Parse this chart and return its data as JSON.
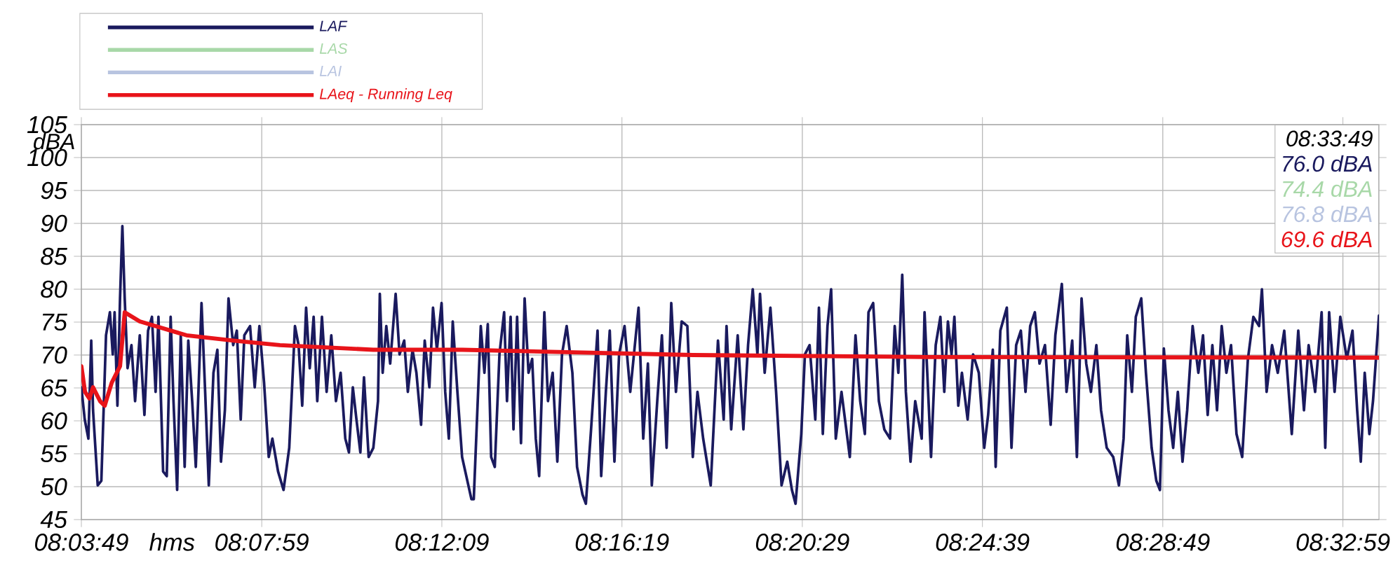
{
  "chart_data": {
    "type": "line",
    "xlabel": "hms",
    "ylabel": "dBA",
    "xlim": [
      8.0636,
      8.5636
    ],
    "ylim": [
      45,
      105
    ],
    "xticks": [
      {
        "value": 8.0636,
        "label": "08:03:49"
      },
      {
        "value": 8.1331,
        "label": "08:07:59"
      },
      {
        "value": 8.2025,
        "label": "08:12:09"
      },
      {
        "value": 8.2719,
        "label": "08:16:19"
      },
      {
        "value": 8.3414,
        "label": "08:20:29"
      },
      {
        "value": 8.4108,
        "label": "08:24:39"
      },
      {
        "value": 8.4803,
        "label": "08:28:49"
      },
      {
        "value": 8.5497,
        "label": "08:32:59"
      }
    ],
    "yticks": [
      45,
      50,
      55,
      60,
      65,
      70,
      75,
      80,
      85,
      90,
      95,
      100,
      105
    ],
    "grid": true,
    "legend": "top",
    "annotations": [
      "08:33:49",
      "76.0 dBA",
      "74.4 dBA",
      "76.8 dBA",
      "69.6 dBA"
    ],
    "series": [
      {
        "name": "LAF",
        "color": "#1a1a5e",
        "x": [
          8.0636,
          8.0649,
          8.0663,
          8.0674,
          8.0681,
          8.0699,
          8.0713,
          8.0731,
          8.0746,
          8.0757,
          8.0764,
          8.0775,
          8.0785,
          8.0794,
          8.0803,
          8.0814,
          8.0829,
          8.0843,
          8.0861,
          8.0879,
          8.0893,
          8.0908,
          8.0922,
          8.0933,
          8.0951,
          8.0965,
          8.098,
          8.0991,
          8.1005,
          8.1019,
          8.1034,
          8.1048,
          8.1063,
          8.1077,
          8.1099,
          8.1113,
          8.1127,
          8.1145,
          8.116,
          8.1174,
          8.1189,
          8.1203,
          8.1221,
          8.1235,
          8.125,
          8.1264,
          8.1286,
          8.1304,
          8.1322,
          8.134,
          8.1358,
          8.1372,
          8.1394,
          8.1415,
          8.1437,
          8.1459,
          8.1473,
          8.1487,
          8.1502,
          8.1516,
          8.1531,
          8.1545,
          8.1563,
          8.1581,
          8.1599,
          8.1617,
          8.1635,
          8.1653,
          8.1667,
          8.1682,
          8.1696,
          8.1711,
          8.1725,
          8.1743,
          8.1761,
          8.1779,
          8.1786,
          8.1797,
          8.1811,
          8.1826,
          8.1847,
          8.1862,
          8.188,
          8.1894,
          8.1912,
          8.1927,
          8.1945,
          8.1959,
          8.1977,
          8.1991,
          8.2006,
          8.2024,
          8.2038,
          8.2052,
          8.2067,
          8.2085,
          8.2103,
          8.2139,
          8.2148,
          8.2175,
          8.2189,
          8.2202,
          8.2215,
          8.2229,
          8.2247,
          8.2265,
          8.2276,
          8.229,
          8.2301,
          8.2315,
          8.233,
          8.2344,
          8.2359,
          8.2373,
          8.2387,
          8.24,
          8.242,
          8.2434,
          8.2452,
          8.247,
          8.2488,
          8.2506,
          8.2528,
          8.2546,
          8.2567,
          8.258,
          8.26,
          8.2625,
          8.2639,
          8.2657,
          8.2672,
          8.269,
          8.2708,
          8.2729,
          8.2751,
          8.2783,
          8.2801,
          8.2819,
          8.2834,
          8.2855,
          8.2873,
          8.2891,
          8.2909,
          8.2927,
          8.2949,
          8.2971,
          8.2992,
          8.301,
          8.3032,
          8.3061,
          8.3089,
          8.3111,
          8.3122,
          8.314,
          8.3165,
          8.3187,
          8.3205,
          8.3223,
          8.3241,
          8.3251,
          8.3269,
          8.3291,
          8.3313,
          8.3334,
          8.3356,
          8.3374,
          8.3388,
          8.341,
          8.3424,
          8.3442,
          8.3464,
          8.3478,
          8.3493,
          8.3511,
          8.3525,
          8.3543,
          8.3565,
          8.3597,
          8.3619,
          8.3637,
          8.3655,
          8.3669,
          8.3687,
          8.3709,
          8.373,
          8.3752,
          8.377,
          8.3784,
          8.3799,
          8.3813,
          8.3831,
          8.3849,
          8.3874,
          8.3885,
          8.391,
          8.3928,
          8.3946,
          8.3961,
          8.3975,
          8.3989,
          8.4,
          8.4015,
          8.4029,
          8.4051,
          8.4072,
          8.4094,
          8.4115,
          8.413,
          8.4148,
          8.4159,
          8.4177,
          8.4202,
          8.422,
          8.4238,
          8.4256,
          8.4274,
          8.4292,
          8.431,
          8.4328,
          8.4349,
          8.4371,
          8.4389,
          8.4414,
          8.4432,
          8.4454,
          8.4472,
          8.449,
          8.4508,
          8.4526,
          8.4547,
          8.4565,
          8.4587,
          8.4612,
          8.4634,
          8.4652,
          8.4666,
          8.4684,
          8.4699,
          8.472,
          8.4738,
          8.476,
          8.4778,
          8.4792,
          8.4807,
          8.4825,
          8.4843,
          8.4861,
          8.4879,
          8.4897,
          8.4918,
          8.494,
          8.4958,
          8.4976,
          8.4994,
          8.5012,
          8.503,
          8.5048,
          8.5066,
          8.5087,
          8.5109,
          8.5131,
          8.5152,
          8.5174,
          8.5185,
          8.5203,
          8.5224,
          8.5246,
          8.5271,
          8.53,
          8.5325,
          8.5347,
          8.5365,
          8.539,
          8.5415,
          8.5429,
          8.5444,
          8.5465,
          8.5487,
          8.5512,
          8.5534,
          8.5552,
          8.5566,
          8.5581,
          8.5599,
          8.5613,
          8.5636
        ],
        "values": [
          65.1,
          60.2,
          57.3,
          72.2,
          61.6,
          50.2,
          50.9,
          73,
          76.5,
          70.1,
          76.5,
          62.3,
          78.6,
          89.6,
          78.6,
          68,
          71.5,
          63,
          73,
          60.9,
          73.7,
          75.8,
          64.4,
          75.8,
          52.3,
          51.6,
          75.8,
          63,
          49.5,
          73,
          53,
          72.2,
          63,
          53,
          77.9,
          64.4,
          50.2,
          67.3,
          70.8,
          53.8,
          61.6,
          78.6,
          71.5,
          73.7,
          60.2,
          73,
          74.4,
          65.1,
          74.4,
          65.8,
          54.5,
          57.3,
          52.3,
          49.5,
          55.9,
          74.4,
          71.5,
          62.3,
          77.2,
          68,
          75.8,
          63,
          75.8,
          64.4,
          73,
          63,
          67.3,
          57.3,
          55.2,
          65.1,
          60.2,
          55.2,
          66.6,
          54.5,
          55.9,
          63,
          79.3,
          67.3,
          74.4,
          68.7,
          79.3,
          70.1,
          72.2,
          64.4,
          70.8,
          67.3,
          59.4,
          72.2,
          65.1,
          77.2,
          70.8,
          77.9,
          64.4,
          57.3,
          75.1,
          64.4,
          54.5,
          48.1,
          48.1,
          74.4,
          67.3,
          74.7,
          54.5,
          53,
          70.1,
          76.5,
          63,
          75.8,
          58.7,
          75.8,
          56.6,
          78.6,
          67.3,
          69.4,
          57.3,
          51.6,
          76.5,
          63,
          67.3,
          53.8,
          70.1,
          74.4,
          67.3,
          53,
          48.8,
          47.4,
          58.7,
          73.7,
          51.6,
          64.4,
          73.7,
          53.8,
          70.1,
          74.4,
          64.4,
          77.2,
          57.3,
          68.7,
          50.2,
          63,
          73,
          55.9,
          77.9,
          64.4,
          75.1,
          74.4,
          54.5,
          64.4,
          57.3,
          50.2,
          72.2,
          60.2,
          74.4,
          58.7,
          73,
          58.7,
          71.5,
          80,
          70.1,
          79.3,
          67.3,
          77.2,
          64.4,
          50.2,
          53.8,
          49.5,
          47.4,
          58,
          70.1,
          71.5,
          60.2,
          77.2,
          58,
          74.4,
          80,
          57.3,
          64.4,
          54.5,
          73,
          63,
          58,
          76.5,
          77.9,
          63,
          58.7,
          57.3,
          74.4,
          67.3,
          82.2,
          64.4,
          53.8,
          63,
          57.3,
          76.5,
          54.5,
          71.5,
          75.8,
          64.4,
          75.1,
          70.1,
          75.8,
          62.3,
          67.3,
          60.2,
          70.1,
          67.3,
          55.9,
          60.9,
          70.8,
          53,
          73.7,
          77.2,
          55.9,
          71.5,
          73.7,
          64.4,
          74.4,
          76.5,
          68.7,
          71.5,
          59.4,
          73,
          80.8,
          64.4,
          72.2,
          54.5,
          78.6,
          68.7,
          64.4,
          71.5,
          61.6,
          55.9,
          54.5,
          50.2,
          57.3,
          73,
          64.4,
          75.8,
          78.6,
          67.3,
          55.9,
          50.9,
          49.5,
          71.0,
          61.6,
          55.9,
          64.4,
          53.8,
          61.6,
          74.4,
          67.3,
          73,
          60.9,
          71.5,
          61.6,
          74.4,
          67.3,
          71.5,
          58,
          54.5,
          69.4,
          75.8,
          74.4,
          80,
          64.4,
          71.5,
          67.3,
          73.7,
          58,
          73.7,
          61.6,
          71.5,
          64.4,
          76.5,
          55.9,
          76.5,
          64.4,
          75.8,
          69.4,
          73.7,
          61.6,
          53.8,
          67.3,
          58,
          63,
          76
        ]
      },
      {
        "name": "LAS",
        "color": "#a8d8a8"
      },
      {
        "name": "LAI",
        "color": "#b8c4e0"
      },
      {
        "name": "LAeq - Running Leq",
        "color": "#e8141a",
        "x": [
          8.0636,
          8.065,
          8.0667,
          8.0681,
          8.0708,
          8.0726,
          8.0753,
          8.0785,
          8.0803,
          8.0861,
          8.1041,
          8.1221,
          8.1401,
          8.1761,
          8.2103,
          8.2993,
          8.3885,
          8.5636
        ],
        "values": [
          68.3,
          64.4,
          63.4,
          65.1,
          63,
          62.3,
          65.8,
          68.3,
          76.5,
          75.1,
          73,
          72.2,
          71.5,
          70.8,
          70.8,
          70,
          69.7,
          69.6
        ]
      }
    ]
  }
}
